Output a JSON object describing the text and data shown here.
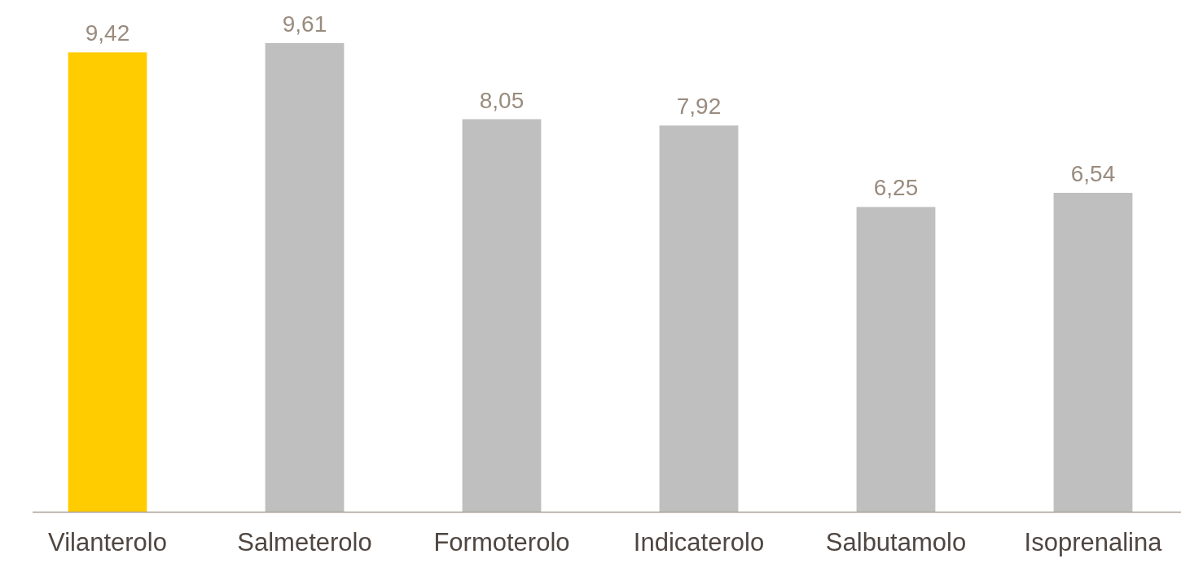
{
  "chart_data": {
    "type": "bar",
    "categories": [
      "Vilanterolo",
      "Salmeterolo",
      "Formoterolo",
      "Indicaterolo",
      "Salbutamolo",
      "Isoprenalina"
    ],
    "values": [
      9.42,
      9.61,
      8.05,
      7.92,
      6.25,
      6.54
    ],
    "colors": [
      "#ffcc00",
      "#bfbfbf",
      "#bfbfbf",
      "#bfbfbf",
      "#bfbfbf",
      "#bfbfbf"
    ],
    "value_labels": [
      "9,42",
      "9,61",
      "8,05",
      "7,92",
      "6,25",
      "6,54"
    ]
  }
}
